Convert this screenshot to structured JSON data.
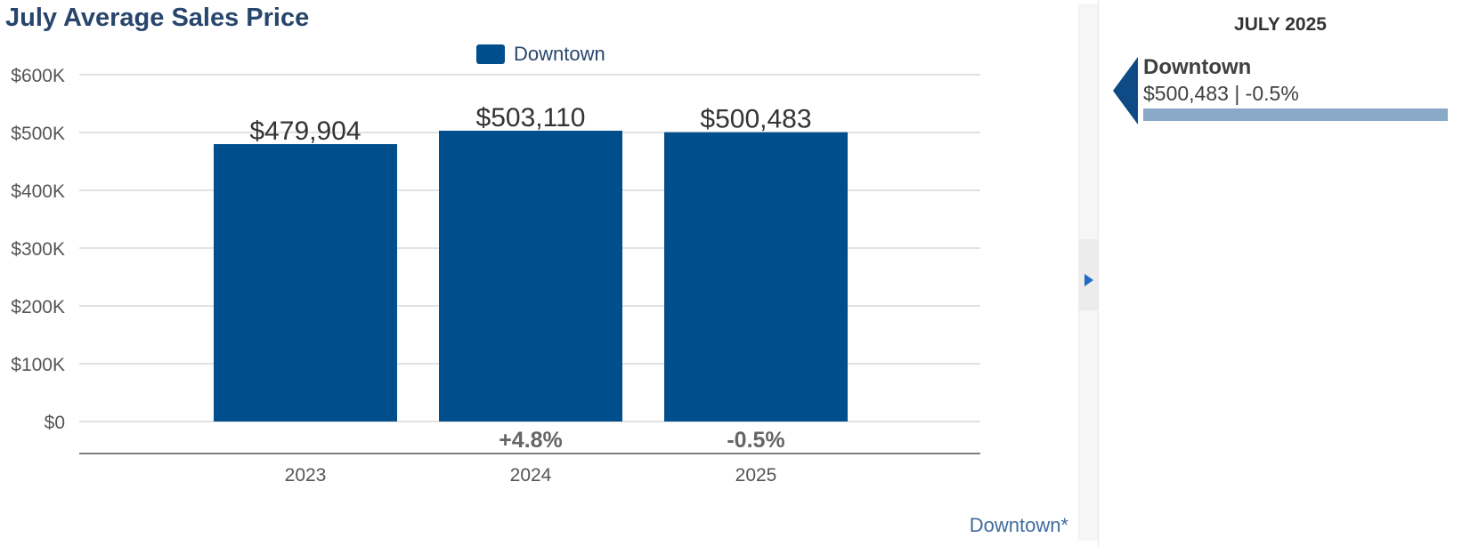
{
  "title": "July Average Sales Price",
  "footnote": "Downtown*",
  "side_panel": {
    "date": "JULY 2025",
    "name": "Downtown",
    "value_line": "$500,483 | -0.5%"
  },
  "colors": {
    "bar": "#004e8c",
    "title": "#28466d",
    "panel_bar": "#8aa8c8",
    "grid": "#d9d9d9"
  },
  "chart_data": {
    "type": "bar",
    "title": "July Average Sales Price",
    "xlabel": "",
    "ylabel": "",
    "categories": [
      "2023",
      "2024",
      "2025"
    ],
    "series": [
      {
        "name": "Downtown",
        "values": [
          479904,
          503110,
          500483
        ]
      }
    ],
    "value_labels": [
      "$479,904",
      "$503,110",
      "$500,483"
    ],
    "change_labels": [
      "",
      "+4.8%",
      "-0.5%"
    ],
    "ylim": [
      0,
      600000
    ],
    "yticks": [
      0,
      100000,
      200000,
      300000,
      400000,
      500000,
      600000
    ],
    "ytick_labels": [
      "$0",
      "$100K",
      "$200K",
      "$300K",
      "$400K",
      "$500K",
      "$600K"
    ],
    "grid": true,
    "legend": "top-center"
  }
}
